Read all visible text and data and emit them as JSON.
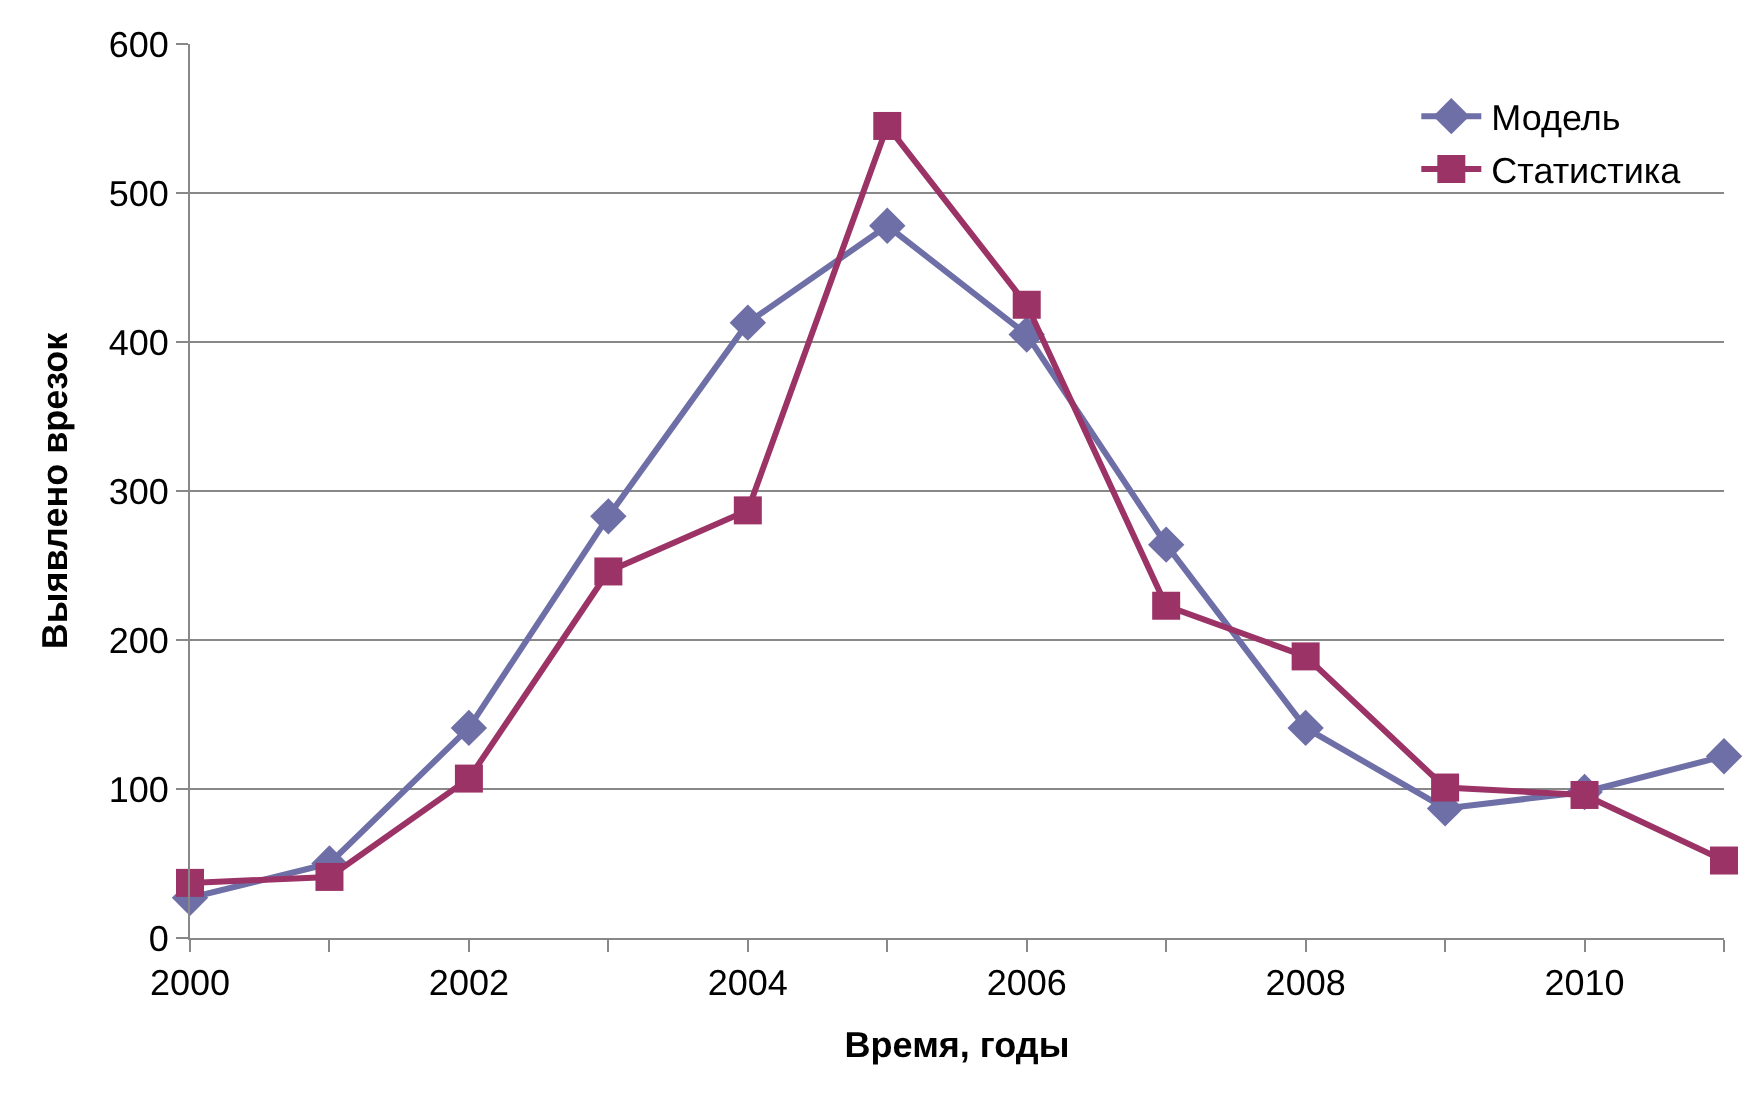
{
  "chart_data": {
    "type": "line",
    "xlabel": "Время, годы",
    "ylabel": "Выявлено врезок",
    "x": [
      2000,
      2001,
      2002,
      2003,
      2004,
      2005,
      2006,
      2007,
      2008,
      2009,
      2010,
      2011
    ],
    "series": [
      {
        "name": "Модель",
        "color": "#6f6fa8",
        "marker": "diamond",
        "values": [
          27,
          50,
          141,
          283,
          413,
          478,
          405,
          264,
          141,
          87,
          98,
          122
        ]
      },
      {
        "name": "Статистика",
        "color": "#9b3366",
        "marker": "square",
        "values": [
          37,
          41,
          107,
          246,
          287,
          545,
          425,
          223,
          189,
          101,
          96,
          52
        ]
      }
    ],
    "xlim": [
      2000,
      2011
    ],
    "xticks": [
      2000,
      {
        "value": 2001,
        "label": null
      },
      2002,
      {
        "value": 2003,
        "label": null
      },
      2004,
      {
        "value": 2005,
        "label": null
      },
      2006,
      {
        "value": 2007,
        "label": null
      },
      2008,
      {
        "value": 2009,
        "label": null
      },
      2010,
      {
        "value": 2011,
        "label": null
      }
    ],
    "ylim": [
      0,
      600
    ],
    "yticks": [
      0,
      100,
      200,
      300,
      400,
      500,
      600
    ],
    "grid": "y",
    "legend": "top right",
    "line_style": "solid"
  }
}
